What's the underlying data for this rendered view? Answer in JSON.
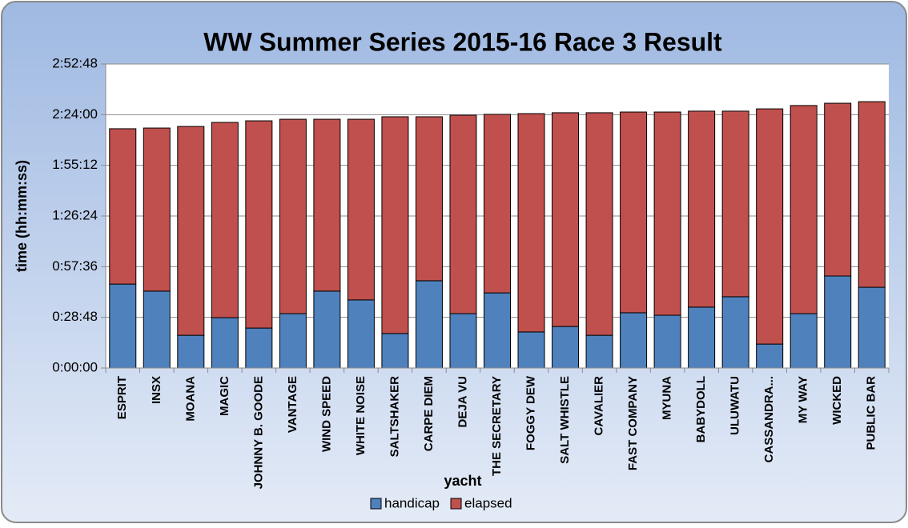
{
  "chart_data": {
    "type": "stacked_bar",
    "title": "WW Summer Series 2015-16 Race 3 Result",
    "x_label": "yacht",
    "y_label": "time (hh:mm:ss)",
    "categories": [
      "ESPRIT",
      "INSX",
      "MOANA",
      "MAGIC",
      "JOHNNY B. GOODE",
      "VANTAGE",
      "WIND SPEED",
      "WHITE NOISE",
      "SALTSHAKER",
      "CARPE DIEM",
      "DEJA VU",
      "THE SECRETARY",
      "FOGGY DEW",
      "SALT WHISTLE",
      "CAVALIER",
      "FAST COMPANY",
      "MYUNA",
      "BABYDOLL",
      "ULUWATU",
      "CASSANDRA...",
      "MY WAY",
      "WICKED",
      "PUBLIC BAR"
    ],
    "series": [
      {
        "name": "handicap",
        "color": "#4f81bd",
        "values": [
          47.7,
          43.7,
          18.6,
          28.6,
          22.7,
          30.9,
          43.7,
          38.7,
          19.6,
          49.6,
          30.9,
          42.7,
          20.5,
          23.6,
          18.6,
          31.4,
          30.0,
          34.6,
          40.5,
          13.6,
          30.9,
          52.3,
          45.9
        ]
      },
      {
        "name": "elapsed",
        "color": "#c0504d",
        "values": [
          88.3,
          92.7,
          118.7,
          111.0,
          117.8,
          110.5,
          97.7,
          102.7,
          123.2,
          93.2,
          112.8,
          101.5,
          124.1,
          121.5,
          126.5,
          114.1,
          115.5,
          111.4,
          105.5,
          133.7,
          118.3,
          98.2,
          105.5
        ]
      }
    ],
    "ylim": [
      0,
      172.8
    ],
    "yticks": [
      {
        "value": 0,
        "label": "0:00:00"
      },
      {
        "value": 28.8,
        "label": "0:28:48"
      },
      {
        "value": 57.6,
        "label": "0:57:36"
      },
      {
        "value": 86.4,
        "label": "1:26:24"
      },
      {
        "value": 115.2,
        "label": "1:55:12"
      },
      {
        "value": 144,
        "label": "2:24:00"
      },
      {
        "value": 172.8,
        "label": "2:52:48"
      }
    ],
    "grid": true,
    "legend": "bottom"
  }
}
